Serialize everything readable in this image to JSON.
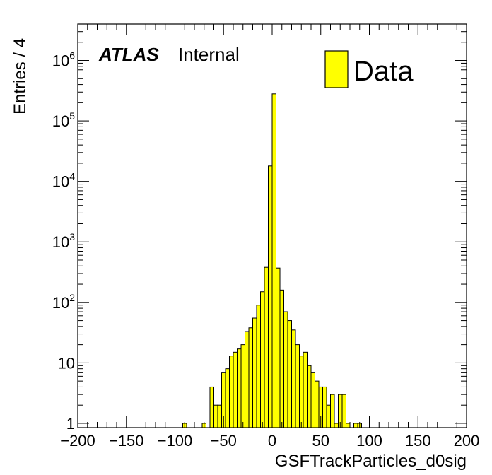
{
  "chart_data": {
    "type": "bar",
    "subtype": "histogram",
    "xlabel": "GSFTrackParticles_d0sig",
    "ylabel": "Entries / 4",
    "xlim": [
      -200,
      200
    ],
    "ylim": [
      0.85,
      4000000
    ],
    "yscale": "log",
    "bin_width": 4,
    "fill_color": "#ffff00",
    "line_color": "#000000",
    "experiment_label": "ATLAS",
    "status_label": "Internal",
    "legend": {
      "position": "top-right",
      "entries": [
        {
          "label": "Data",
          "color": "#ffff00"
        }
      ]
    },
    "x_tick_labels": [
      "−200",
      "−150",
      "−100",
      "−50",
      "0",
      "50",
      "100",
      "150",
      "200"
    ],
    "x_tick_values": [
      -200,
      -150,
      -100,
      -50,
      0,
      50,
      100,
      150,
      200
    ],
    "y_tick_values": [
      1,
      10,
      100,
      1000,
      10000,
      100000,
      1000000
    ],
    "y_tick_labels": [
      {
        "base": "1",
        "exp": ""
      },
      {
        "base": "10",
        "exp": ""
      },
      {
        "base": "10",
        "exp": "2"
      },
      {
        "base": "10",
        "exp": "3"
      },
      {
        "base": "10",
        "exp": "4"
      },
      {
        "base": "10",
        "exp": "5"
      },
      {
        "base": "10",
        "exp": "6"
      }
    ],
    "bins": [
      {
        "x": -90,
        "y": 1
      },
      {
        "x": -70,
        "y": 1
      },
      {
        "x": -62,
        "y": 4
      },
      {
        "x": -58,
        "y": 2
      },
      {
        "x": -54,
        "y": 2
      },
      {
        "x": -50,
        "y": 7
      },
      {
        "x": -46,
        "y": 8
      },
      {
        "x": -42,
        "y": 13
      },
      {
        "x": -38,
        "y": 15
      },
      {
        "x": -34,
        "y": 17
      },
      {
        "x": -30,
        "y": 20
      },
      {
        "x": -26,
        "y": 33
      },
      {
        "x": -22,
        "y": 38
      },
      {
        "x": -18,
        "y": 55
      },
      {
        "x": -14,
        "y": 90
      },
      {
        "x": -10,
        "y": 150
      },
      {
        "x": -6,
        "y": 380
      },
      {
        "x": -2,
        "y": 18000
      },
      {
        "x": 2,
        "y": 280000
      },
      {
        "x": 6,
        "y": 370
      },
      {
        "x": 10,
        "y": 160
      },
      {
        "x": 14,
        "y": 70
      },
      {
        "x": 18,
        "y": 50
      },
      {
        "x": 22,
        "y": 35
      },
      {
        "x": 26,
        "y": 20
      },
      {
        "x": 30,
        "y": 13
      },
      {
        "x": 34,
        "y": 15
      },
      {
        "x": 38,
        "y": 9
      },
      {
        "x": 42,
        "y": 7
      },
      {
        "x": 46,
        "y": 5
      },
      {
        "x": 50,
        "y": 4
      },
      {
        "x": 54,
        "y": 4
      },
      {
        "x": 58,
        "y": 2
      },
      {
        "x": 62,
        "y": 3
      },
      {
        "x": 66,
        "y": 1
      },
      {
        "x": 70,
        "y": 3
      },
      {
        "x": 74,
        "y": 3
      },
      {
        "x": 78,
        "y": 1
      },
      {
        "x": 86,
        "y": 1
      },
      {
        "x": 90,
        "y": 1
      }
    ]
  }
}
